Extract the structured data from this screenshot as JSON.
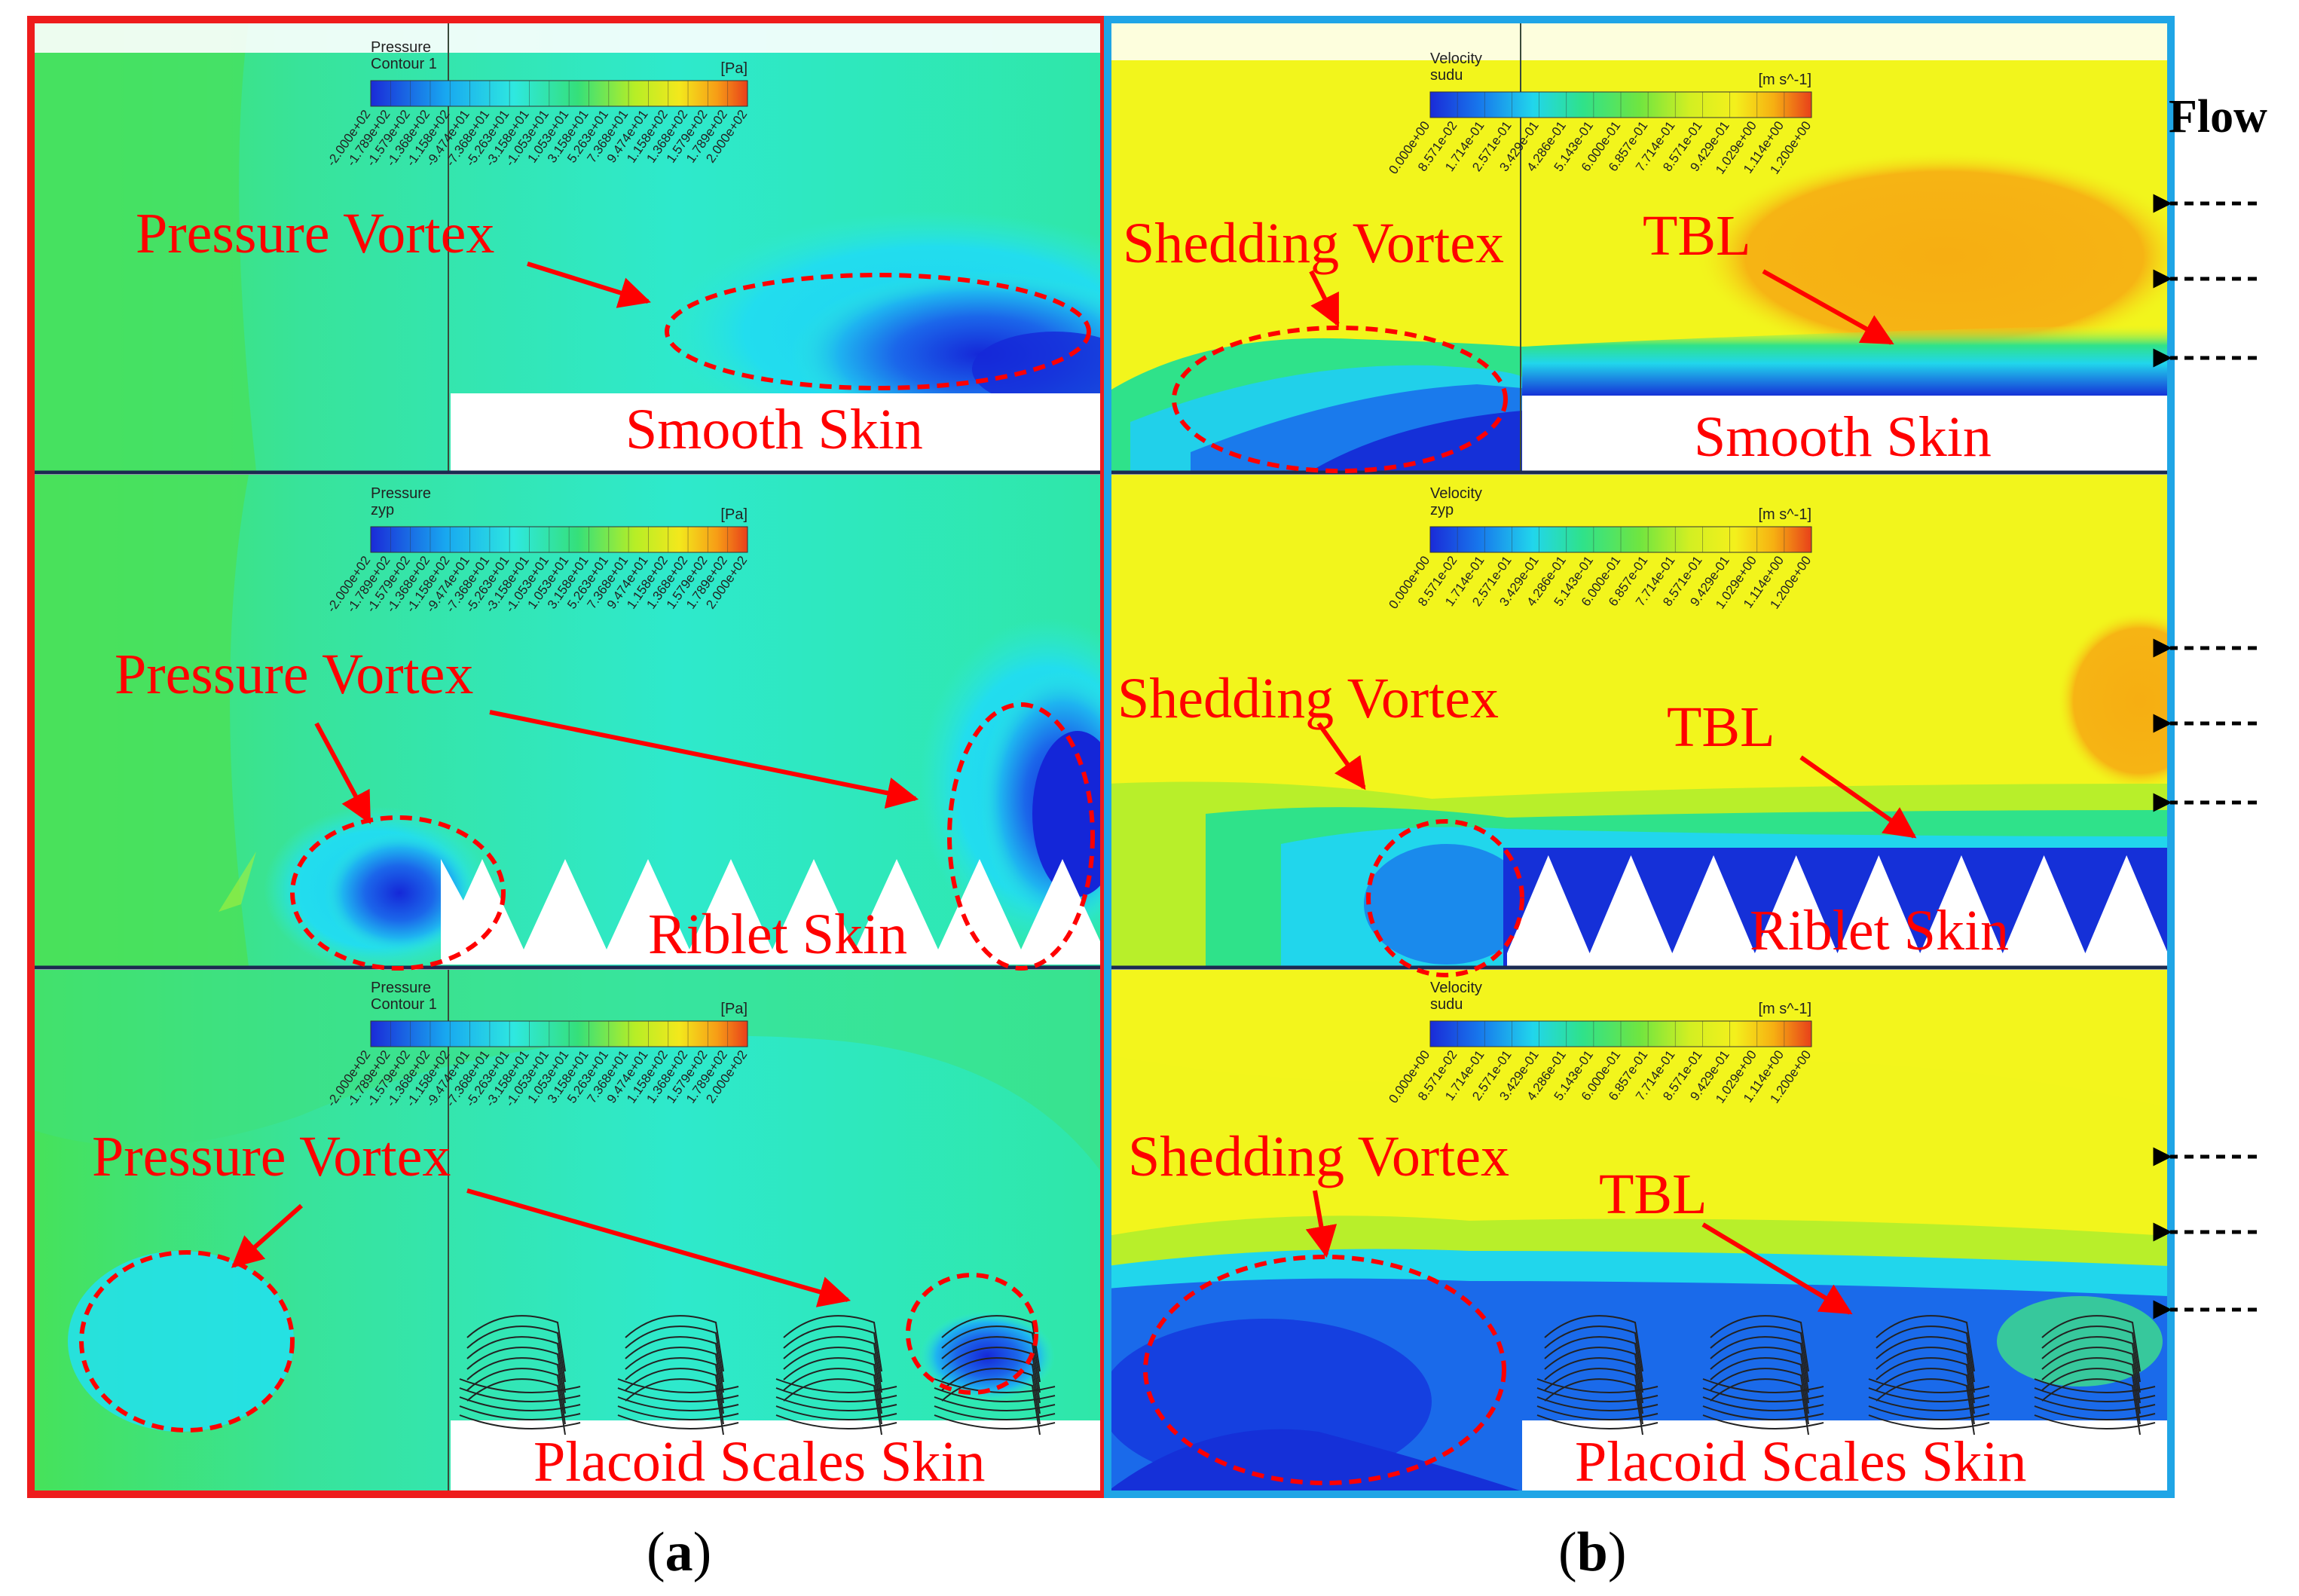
{
  "flow_label": "Flow",
  "caption_a": "a",
  "caption_b": "b",
  "colors": {
    "panel_a_border": "#ee1c1c",
    "panel_b_border": "#1fa5e6",
    "annotation_red": "#ff0000",
    "divider": "#1b2a50",
    "field_green": "#3de06a",
    "field_cyan": "#2aece0",
    "field_yellow": "#f2f51c",
    "field_orange": "#f6b312",
    "low_blue": "#1736e8"
  },
  "panels": [
    {
      "id": "a1",
      "legend": {
        "title": "Pressure",
        "subtitle": "Contour 1",
        "unit": "[Pa]",
        "ticks": [
          "-2.000e+02",
          "-1.789e+02",
          "-1.579e+02",
          "-1.368e+02",
          "-1.158e+02",
          "-9.474e+01",
          "-7.368e+01",
          "-5.263e+01",
          "-3.158e+01",
          "-1.053e+01",
          "1.053e+01",
          "3.158e+01",
          "5.263e+01",
          "7.368e+01",
          "9.474e+01",
          "1.158e+02",
          "1.368e+02",
          "1.579e+02",
          "1.789e+02",
          "2.000e+02"
        ]
      },
      "annotations": [
        "Pressure Vortex"
      ],
      "skin_label": "Smooth Skin"
    },
    {
      "id": "a2",
      "legend": {
        "title": "Pressure",
        "subtitle": "zyp",
        "unit": "[Pa]",
        "ticks": [
          "-2.000e+02",
          "-1.789e+02",
          "-1.579e+02",
          "-1.368e+02",
          "-1.158e+02",
          "-9.474e+01",
          "-7.368e+01",
          "-5.263e+01",
          "-3.158e+01",
          "-1.053e+01",
          "1.053e+01",
          "3.158e+01",
          "5.263e+01",
          "7.368e+01",
          "9.474e+01",
          "1.158e+02",
          "1.368e+02",
          "1.579e+02",
          "1.789e+02",
          "2.000e+02"
        ]
      },
      "annotations": [
        "Pressure Vortex"
      ],
      "skin_label": "Riblet Skin"
    },
    {
      "id": "a3",
      "legend": {
        "title": "Pressure",
        "subtitle": "Contour 1",
        "unit": "[Pa]",
        "ticks": [
          "-2.000e+02",
          "-1.789e+02",
          "-1.579e+02",
          "-1.368e+02",
          "-1.158e+02",
          "-9.474e+01",
          "-7.368e+01",
          "-5.263e+01",
          "-3.158e+01",
          "-1.053e+01",
          "1.053e+01",
          "3.158e+01",
          "5.263e+01",
          "7.368e+01",
          "9.474e+01",
          "1.158e+02",
          "1.368e+02",
          "1.579e+02",
          "1.789e+02",
          "2.000e+02"
        ]
      },
      "annotations": [
        "Pressure Vortex"
      ],
      "skin_label": "Placoid Scales Skin"
    },
    {
      "id": "b1",
      "legend": {
        "title": "Velocity",
        "subtitle": "sudu",
        "unit": "[m s^-1]",
        "ticks": [
          "0.000e+00",
          "8.571e-02",
          "1.714e-01",
          "2.571e-01",
          "3.429e-01",
          "4.286e-01",
          "5.143e-01",
          "6.000e-01",
          "6.857e-01",
          "7.714e-01",
          "8.571e-01",
          "9.429e-01",
          "1.029e+00",
          "1.114e+00",
          "1.200e+00"
        ]
      },
      "annotations": [
        "Shedding Vortex",
        "TBL"
      ],
      "skin_label": "Smooth Skin"
    },
    {
      "id": "b2",
      "legend": {
        "title": "Velocity",
        "subtitle": "zyp",
        "unit": "[m s^-1]",
        "ticks": [
          "0.000e+00",
          "8.571e-02",
          "1.714e-01",
          "2.571e-01",
          "3.429e-01",
          "4.286e-01",
          "5.143e-01",
          "6.000e-01",
          "6.857e-01",
          "7.714e-01",
          "8.571e-01",
          "9.429e-01",
          "1.029e+00",
          "1.114e+00",
          "1.200e+00"
        ]
      },
      "annotations": [
        "Shedding Vortex",
        "TBL"
      ],
      "skin_label": "Riblet Skin"
    },
    {
      "id": "b3",
      "legend": {
        "title": "Velocity",
        "subtitle": "sudu",
        "unit": "[m s^-1]",
        "ticks": [
          "0.000e+00",
          "8.571e-02",
          "1.714e-01",
          "2.571e-01",
          "3.429e-01",
          "4.286e-01",
          "5.143e-01",
          "6.000e-01",
          "6.857e-01",
          "7.714e-01",
          "8.571e-01",
          "9.429e-01",
          "1.029e+00",
          "1.114e+00",
          "1.200e+00"
        ]
      },
      "annotations": [
        "Shedding Vortex",
        "TBL"
      ],
      "skin_label": "Placoid Scales Skin"
    }
  ]
}
